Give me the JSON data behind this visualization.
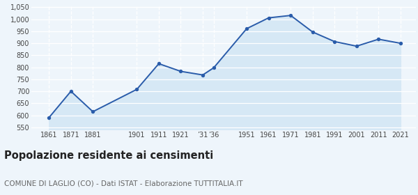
{
  "years": [
    1861,
    1871,
    1881,
    1901,
    1911,
    1921,
    1931,
    1936,
    1951,
    1961,
    1971,
    1981,
    1991,
    2001,
    2011,
    2021
  ],
  "population": [
    590,
    700,
    615,
    708,
    815,
    783,
    768,
    798,
    961,
    1006,
    1016,
    947,
    907,
    888,
    917,
    900
  ],
  "line_color": "#2a5caa",
  "fill_color": "#d6e8f5",
  "marker_color": "#2a5caa",
  "background_color": "#eef5fb",
  "grid_color": "#ffffff",
  "ylim": [
    540,
    1060
  ],
  "yticks": [
    550,
    600,
    650,
    700,
    750,
    800,
    850,
    900,
    950,
    1000,
    1050
  ],
  "title": "Popolazione residente ai censimenti",
  "subtitle": "COMUNE DI LAGLIO (CO) - Dati ISTAT - Elaborazione TUTTITALIA.IT",
  "title_fontsize": 10.5,
  "subtitle_fontsize": 7.5,
  "xlim_left": 1853,
  "xlim_right": 2028
}
